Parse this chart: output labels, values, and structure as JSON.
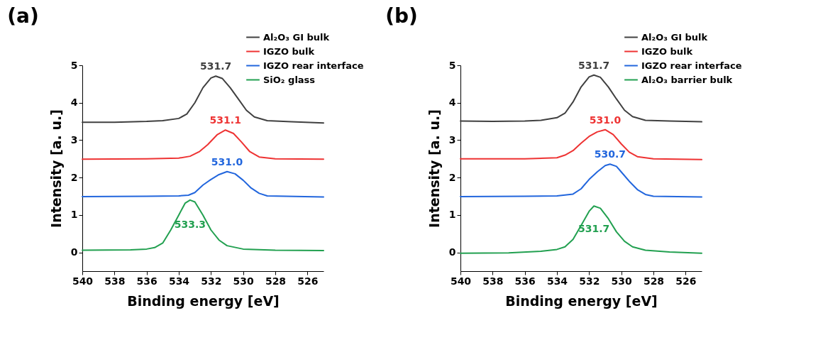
{
  "chart_data": [
    {
      "type": "line",
      "title": "(a)",
      "xlabel": "Binding energy [eV]",
      "ylabel": "Intensity [a. u.]",
      "xlim": [
        540,
        525
      ],
      "ylim": [
        -0.5,
        5
      ],
      "xticks": [
        540,
        538,
        536,
        534,
        532,
        530,
        528,
        526
      ],
      "yticks": [
        0,
        1,
        2,
        3,
        4,
        5
      ],
      "grid": false,
      "legend": "top right",
      "line_style": "solid",
      "series": [
        {
          "name": "Al₂O₃ GI bulk",
          "color": "#404040",
          "x": [
            540,
            538,
            536,
            535,
            534,
            533.5,
            533,
            532.5,
            532,
            531.7,
            531.3,
            530.8,
            530.3,
            529.8,
            529.3,
            528.5,
            527,
            525
          ],
          "values": [
            3.48,
            3.48,
            3.5,
            3.52,
            3.58,
            3.7,
            4.0,
            4.4,
            4.66,
            4.71,
            4.65,
            4.4,
            4.1,
            3.8,
            3.62,
            3.52,
            3.49,
            3.46
          ]
        },
        {
          "name": "IGZO bulk",
          "color": "#ee3333",
          "x": [
            540,
            536,
            534,
            533.3,
            532.7,
            532.2,
            531.6,
            531.1,
            530.6,
            530.1,
            529.6,
            529,
            528,
            525
          ],
          "values": [
            2.49,
            2.5,
            2.52,
            2.57,
            2.7,
            2.88,
            3.15,
            3.27,
            3.18,
            2.95,
            2.7,
            2.55,
            2.5,
            2.49
          ]
        },
        {
          "name": "IGZO rear interface",
          "color": "#2266dd",
          "x": [
            540,
            536,
            534,
            533.4,
            533,
            532.5,
            532,
            531.5,
            531,
            530.5,
            530,
            529.5,
            529,
            528.5,
            525
          ],
          "values": [
            1.49,
            1.5,
            1.51,
            1.53,
            1.6,
            1.8,
            1.95,
            2.08,
            2.16,
            2.1,
            1.93,
            1.72,
            1.58,
            1.51,
            1.48
          ]
        },
        {
          "name": "SiO₂ glass",
          "color": "#22a050",
          "x": [
            540,
            537,
            536,
            535.5,
            535,
            534.5,
            534,
            533.6,
            533.3,
            533,
            532.5,
            532,
            531.5,
            531,
            530,
            528,
            525
          ],
          "values": [
            0.06,
            0.07,
            0.09,
            0.13,
            0.25,
            0.6,
            1.0,
            1.32,
            1.4,
            1.35,
            1.0,
            0.6,
            0.33,
            0.18,
            0.09,
            0.06,
            0.05
          ]
        }
      ],
      "annotations": [
        "531.7",
        "531.1",
        "531.0",
        "533.3"
      ]
    },
    {
      "type": "line",
      "title": "(b)",
      "xlabel": "Binding energy [eV]",
      "ylabel": "Intensity [a. u.]",
      "xlim": [
        540,
        525
      ],
      "ylim": [
        -0.5,
        5
      ],
      "xticks": [
        540,
        538,
        536,
        534,
        532,
        530,
        528,
        526
      ],
      "yticks": [
        0,
        1,
        2,
        3,
        4,
        5
      ],
      "grid": false,
      "legend": "top right",
      "line_style": "solid",
      "series": [
        {
          "name": "Al₂O₃ GI bulk",
          "color": "#404040",
          "x": [
            540,
            538,
            536,
            535,
            534,
            533.5,
            533,
            532.5,
            532,
            531.7,
            531.3,
            530.8,
            530.3,
            529.8,
            529.3,
            528.5,
            527,
            525
          ],
          "values": [
            3.51,
            3.5,
            3.51,
            3.53,
            3.6,
            3.72,
            4.02,
            4.42,
            4.69,
            4.74,
            4.68,
            4.42,
            4.1,
            3.8,
            3.63,
            3.53,
            3.51,
            3.49
          ]
        },
        {
          "name": "IGZO bulk",
          "color": "#ee3333",
          "x": [
            540,
            536,
            534,
            533.5,
            533,
            532.5,
            532,
            531.5,
            531,
            530.5,
            530,
            529.5,
            529,
            528,
            525
          ],
          "values": [
            2.5,
            2.5,
            2.53,
            2.6,
            2.72,
            2.92,
            3.1,
            3.22,
            3.28,
            3.15,
            2.9,
            2.68,
            2.56,
            2.5,
            2.48
          ]
        },
        {
          "name": "IGZO rear interface",
          "color": "#2266dd",
          "x": [
            540,
            536,
            534,
            533,
            532.5,
            532,
            531.5,
            531,
            530.7,
            530.3,
            530,
            529.5,
            529,
            528.5,
            528,
            525
          ],
          "values": [
            1.49,
            1.5,
            1.51,
            1.56,
            1.7,
            1.95,
            2.15,
            2.32,
            2.36,
            2.3,
            2.15,
            1.9,
            1.68,
            1.55,
            1.5,
            1.48
          ]
        },
        {
          "name": "Al₂O₃ barrier bulk",
          "color": "#22a050",
          "x": [
            540,
            537,
            535,
            534,
            533.5,
            533,
            532.5,
            532,
            531.7,
            531.3,
            530.8,
            530.3,
            529.8,
            529.3,
            528.5,
            527,
            525
          ],
          "values": [
            -0.02,
            -0.01,
            0.03,
            0.08,
            0.15,
            0.35,
            0.72,
            1.1,
            1.24,
            1.18,
            0.9,
            0.55,
            0.3,
            0.15,
            0.06,
            0.01,
            -0.02
          ]
        }
      ],
      "annotations": [
        "531.7",
        "531.0",
        "530.7",
        "531.7"
      ]
    }
  ]
}
